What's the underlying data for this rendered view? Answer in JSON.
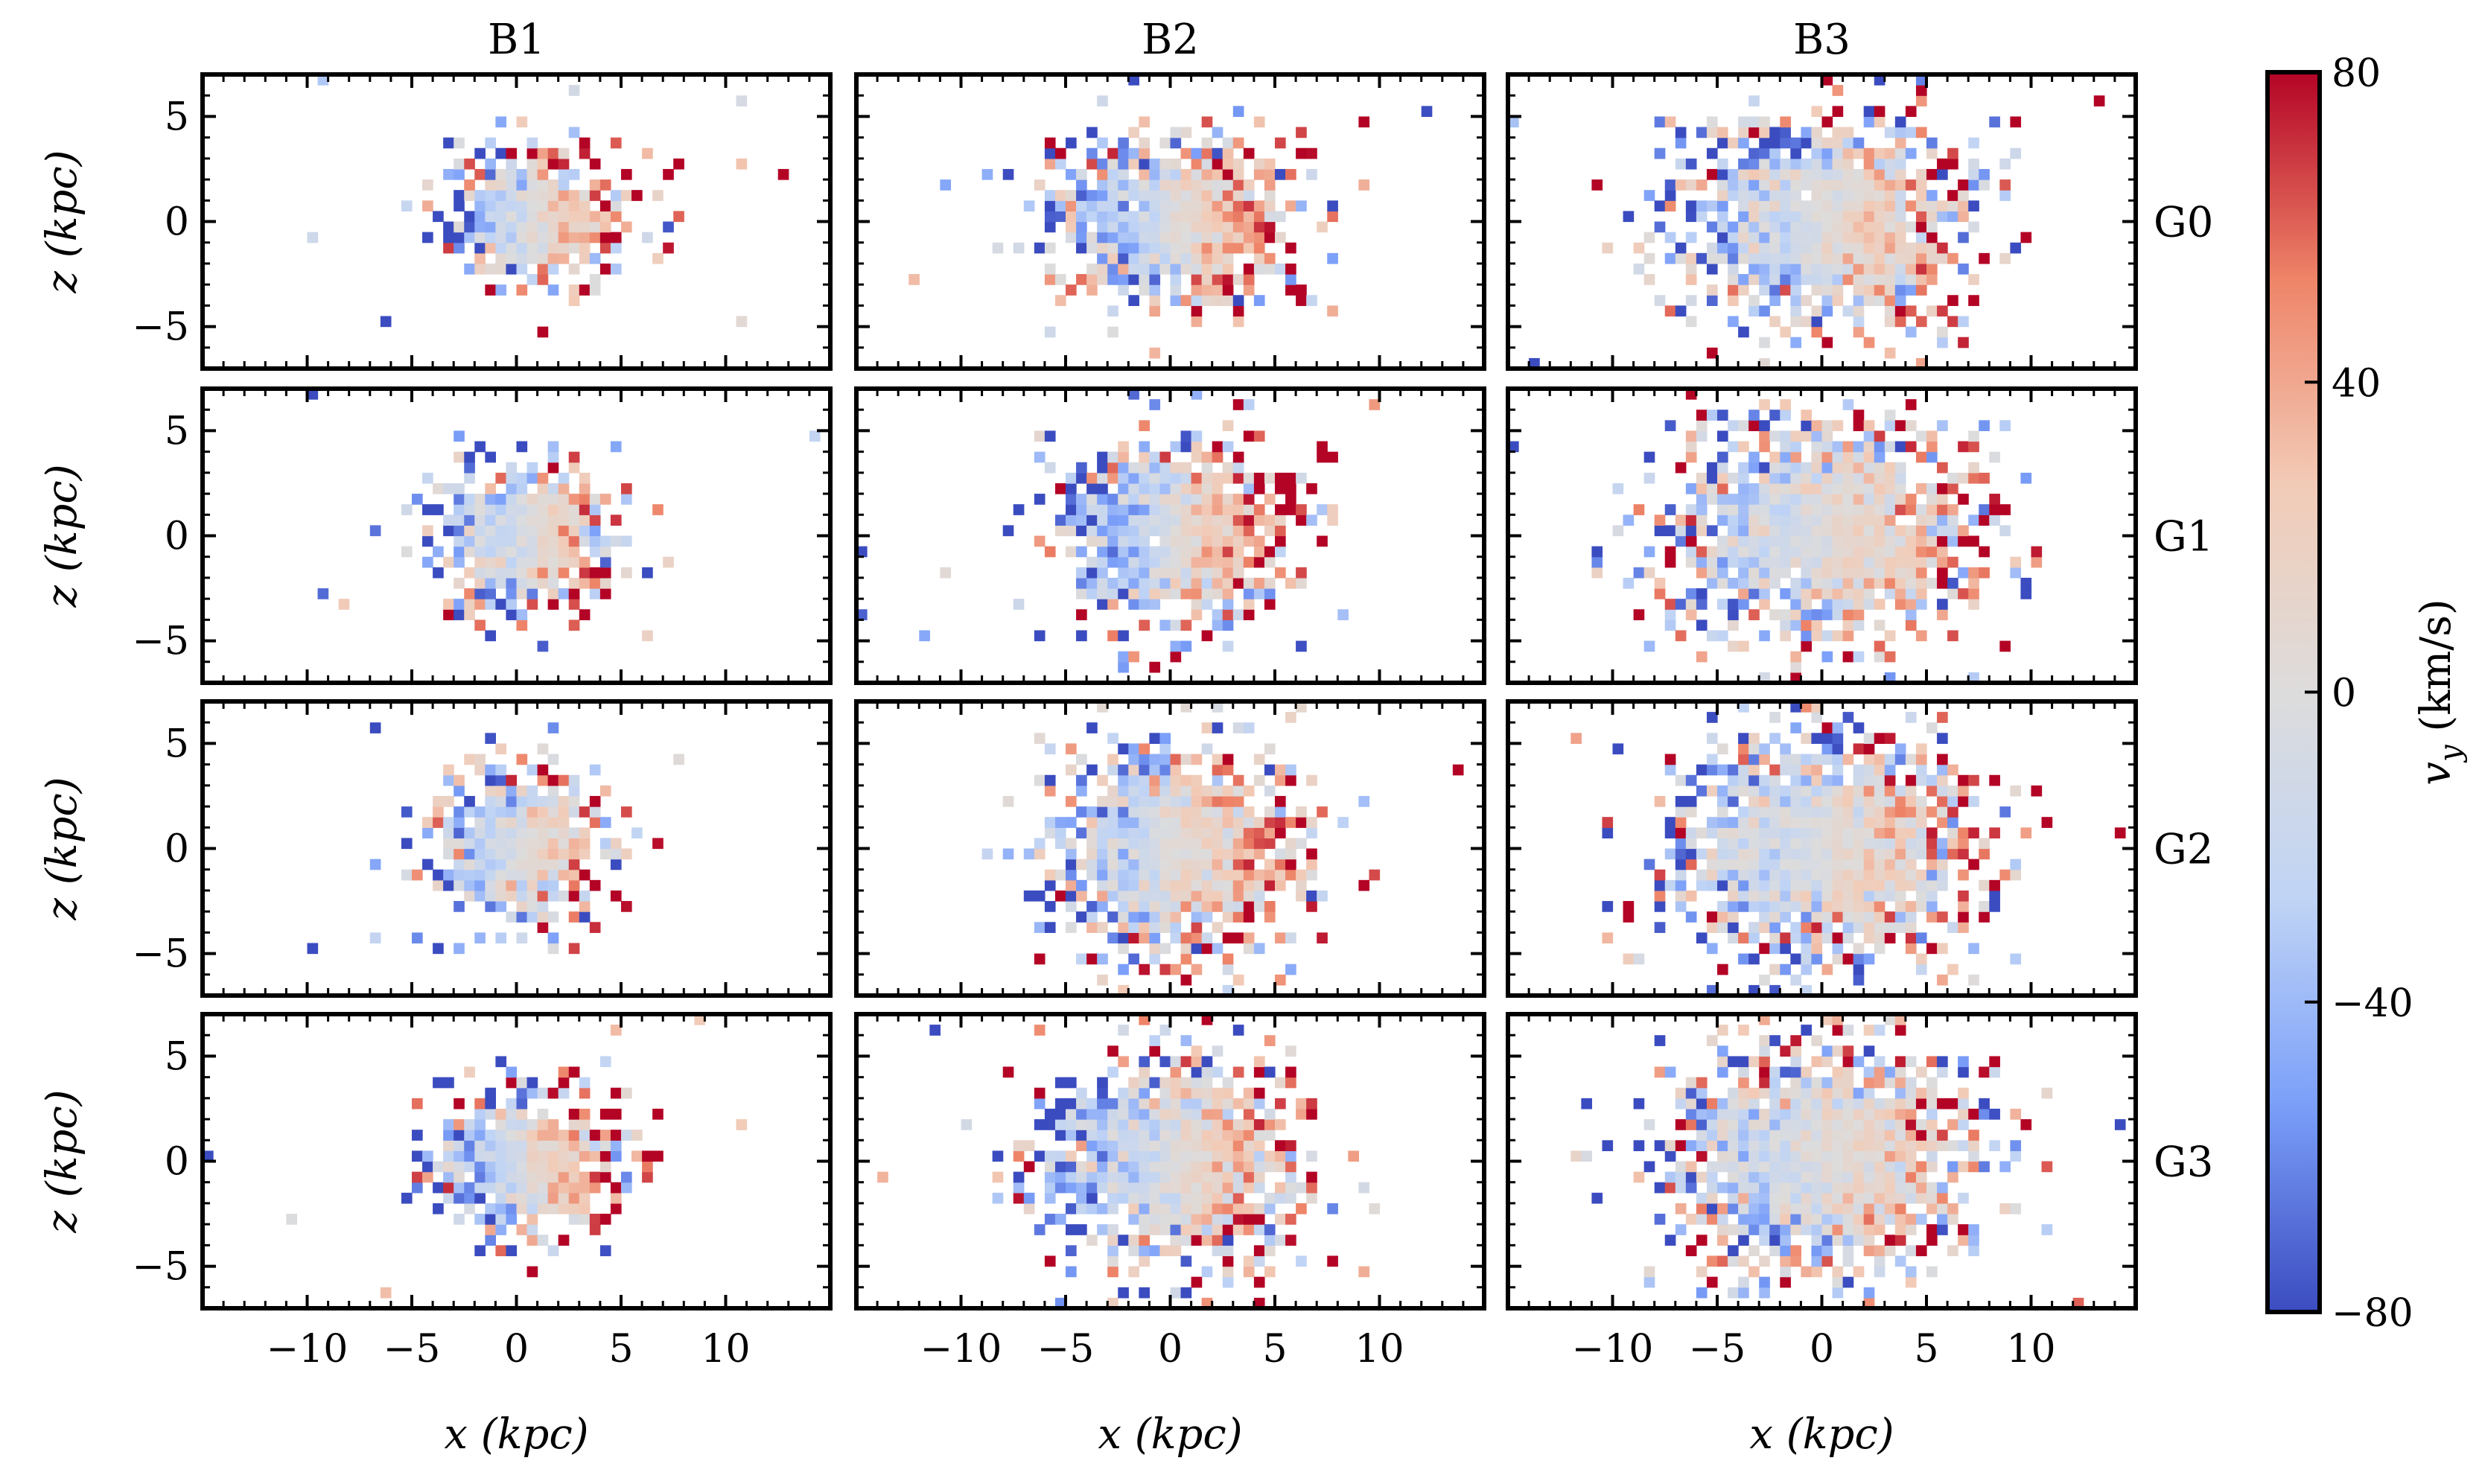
{
  "chart_data": {
    "type": "heatmap",
    "description_kind": "grid of 2D binned velocity maps",
    "columns": [
      "B1",
      "B2",
      "B3"
    ],
    "rows": [
      "G0",
      "G1",
      "G2",
      "G3"
    ],
    "xlabel": "x (kpc)",
    "ylabel": "z (kpc)",
    "xlim": [
      -15,
      15
    ],
    "ylim": [
      -7,
      7
    ],
    "xticks": [
      -10,
      -5,
      0,
      5,
      10
    ],
    "xtick_labels": [
      "−10",
      "−5",
      "0",
      "5",
      "10"
    ],
    "yticks": [
      -5,
      0,
      5
    ],
    "ytick_labels": [
      "−5",
      "0",
      "5"
    ],
    "colorbar": {
      "label": "v_y (km/s)",
      "label_main": "v",
      "label_sub": "y",
      "label_unit": " (km/s)",
      "range": [
        -80,
        80
      ],
      "ticks": [
        -80,
        -40,
        0,
        40,
        80
      ],
      "tick_labels": [
        "−80",
        "−40",
        "0",
        "40",
        "80"
      ],
      "colormap": "coolwarm",
      "color_stops": [
        "#3b4cc0",
        "#7b9ff9",
        "#c0d4f5",
        "#dddcdc",
        "#f2cbb7",
        "#ee8468",
        "#b40426"
      ]
    },
    "panels": [
      {
        "column": "B1",
        "row": "G0",
        "extent_kpc": [
          4.5,
          3.5
        ],
        "center_x": 0.8,
        "rotation_amplitude": 40
      },
      {
        "column": "B2",
        "row": "G0",
        "extent_kpc": [
          6.0,
          4.5
        ],
        "center_x": 0.3,
        "rotation_amplitude": 35
      },
      {
        "column": "B3",
        "row": "G0",
        "extent_kpc": [
          7.0,
          5.5
        ],
        "center_x": 0.2,
        "rotation_amplitude": 20
      },
      {
        "column": "B1",
        "row": "G1",
        "extent_kpc": [
          4.5,
          3.8
        ],
        "center_x": 0.3,
        "rotation_amplitude": 30
      },
      {
        "column": "B2",
        "row": "G1",
        "extent_kpc": [
          6.0,
          5.0
        ],
        "center_x": 0.2,
        "rotation_amplitude": 40
      },
      {
        "column": "B3",
        "row": "G1",
        "extent_kpc": [
          7.5,
          6.0
        ],
        "center_x": 0.1,
        "rotation_amplitude": 15
      },
      {
        "column": "B1",
        "row": "G2",
        "extent_kpc": [
          4.5,
          4.0
        ],
        "center_x": 0.3,
        "rotation_amplitude": 30
      },
      {
        "column": "B2",
        "row": "G2",
        "extent_kpc": [
          6.5,
          5.5
        ],
        "center_x": 0.2,
        "rotation_amplitude": 25
      },
      {
        "column": "B3",
        "row": "G2",
        "extent_kpc": [
          7.5,
          6.0
        ],
        "center_x": 0.0,
        "rotation_amplitude": 15
      },
      {
        "column": "B1",
        "row": "G3",
        "extent_kpc": [
          4.5,
          4.0
        ],
        "center_x": 0.5,
        "rotation_amplitude": 35
      },
      {
        "column": "B2",
        "row": "G3",
        "extent_kpc": [
          6.5,
          5.5
        ],
        "center_x": 0.2,
        "rotation_amplitude": 25
      },
      {
        "column": "B3",
        "row": "G3",
        "extent_kpc": [
          7.5,
          6.2
        ],
        "center_x": 0.0,
        "rotation_amplitude": 15
      }
    ]
  }
}
